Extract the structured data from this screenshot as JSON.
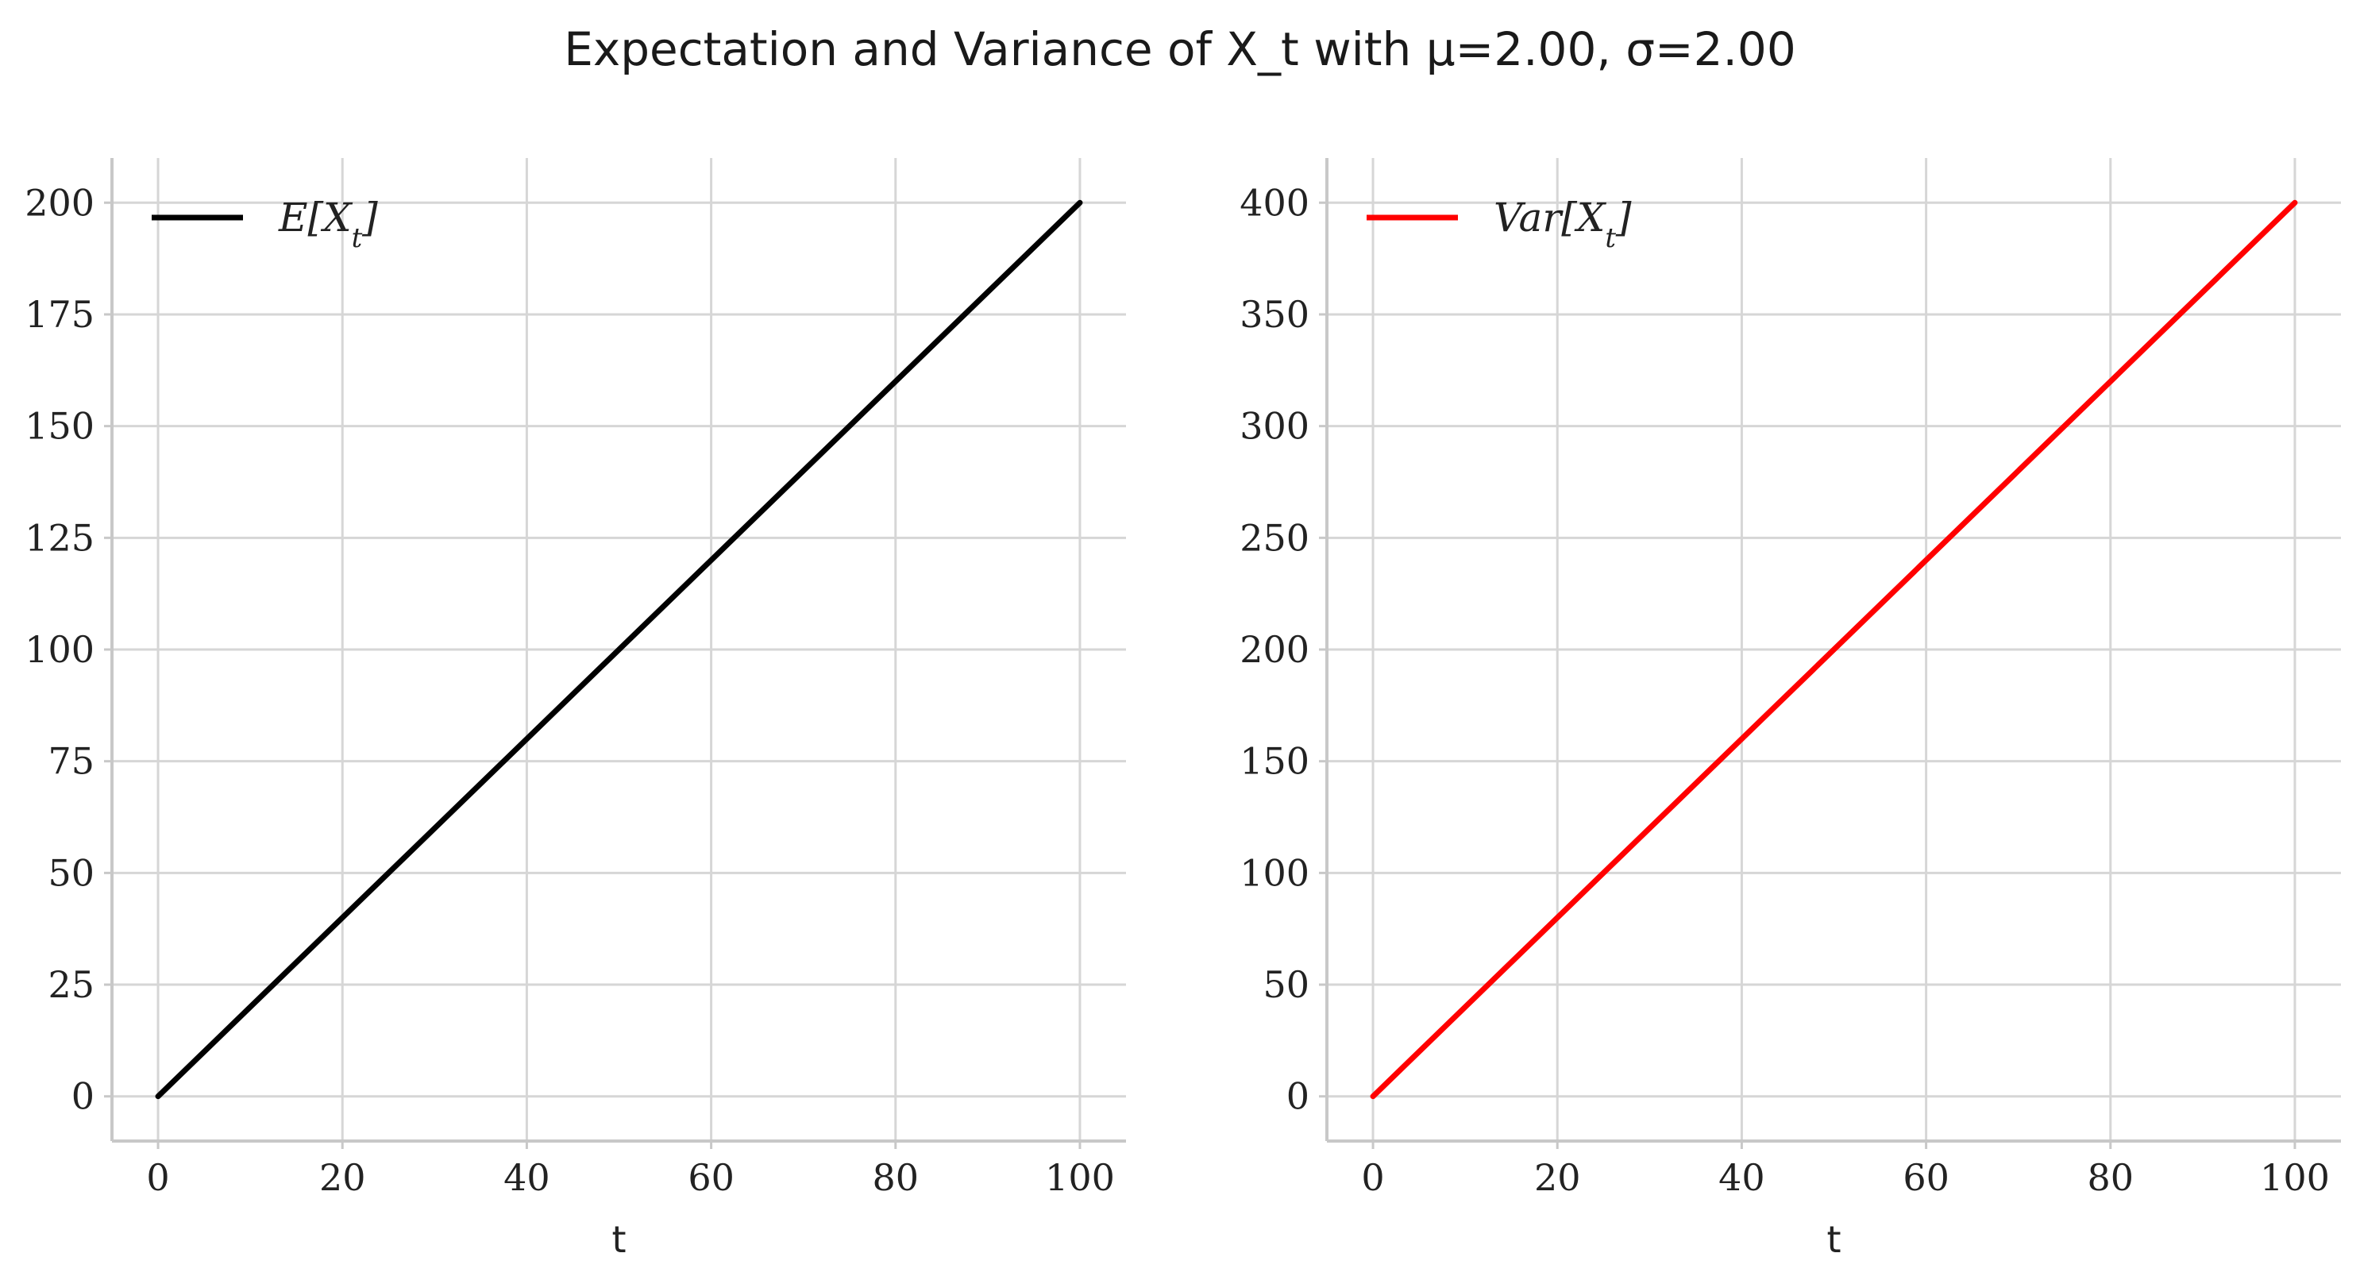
{
  "figure_title": "Expectation and Variance of X_t with μ=2.00, σ=2.00",
  "chart_data": [
    {
      "type": "line",
      "title": "",
      "xlabel": "t",
      "ylabel": "",
      "xlim": [
        -5,
        105
      ],
      "ylim": [
        -10,
        210
      ],
      "xticks": [
        0,
        20,
        40,
        60,
        80,
        100
      ],
      "yticks": [
        0,
        25,
        50,
        75,
        100,
        125,
        150,
        175,
        200
      ],
      "grid": true,
      "legend_position": "top-left",
      "series": [
        {
          "name": "E[X_t]",
          "color": "#000000",
          "x": [
            0,
            100
          ],
          "y": [
            0,
            200
          ]
        }
      ]
    },
    {
      "type": "line",
      "title": "",
      "xlabel": "t",
      "ylabel": "",
      "xlim": [
        -5,
        105
      ],
      "ylim": [
        -20,
        420
      ],
      "xticks": [
        0,
        20,
        40,
        60,
        80,
        100
      ],
      "yticks": [
        0,
        50,
        100,
        150,
        200,
        250,
        300,
        350,
        400
      ],
      "grid": true,
      "legend_position": "top-left",
      "series": [
        {
          "name": "Var[X_t]",
          "color": "#ff0000",
          "x": [
            0,
            100
          ],
          "y": [
            0,
            400
          ]
        }
      ]
    }
  ]
}
